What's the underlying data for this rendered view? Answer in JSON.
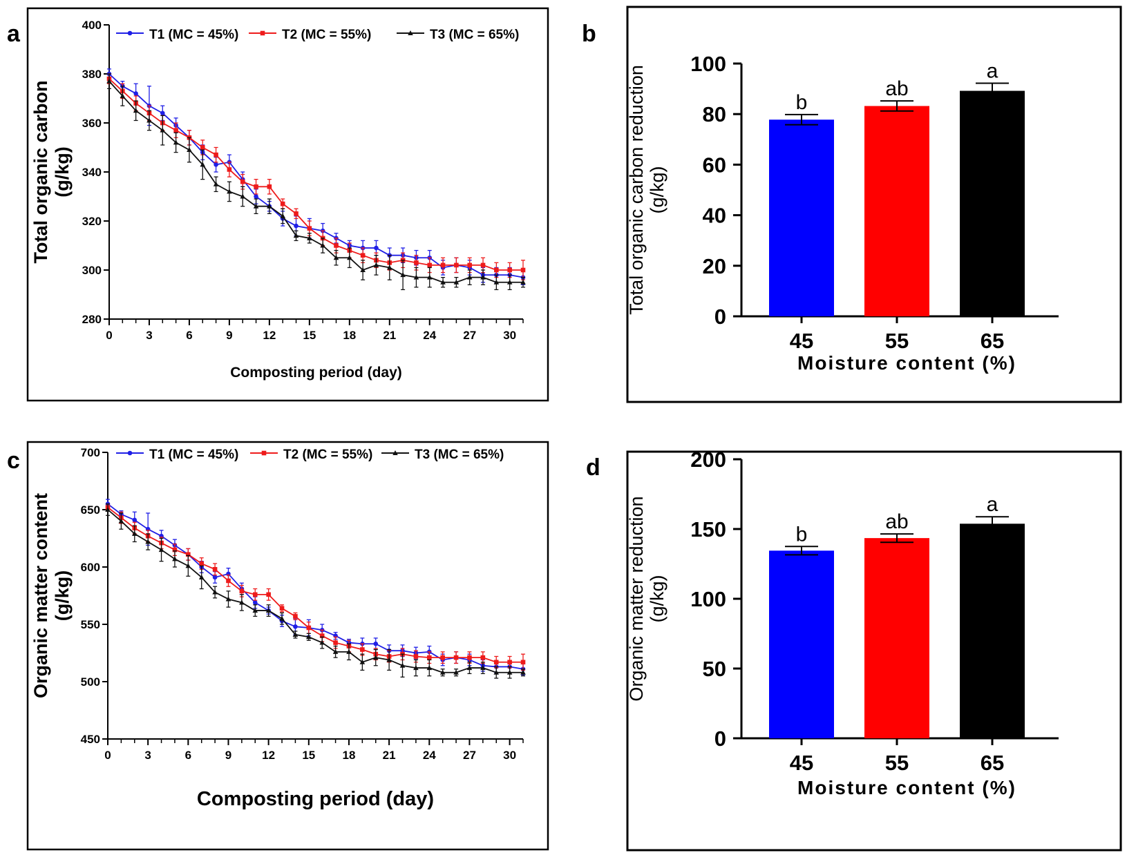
{
  "panel_labels": {
    "a": "a",
    "b": "b",
    "c": "c",
    "d": "d"
  },
  "colors": {
    "T1": "#1f1fe6",
    "T2": "#ee1b1b",
    "T3": "#111111",
    "blue_bar": "#0000ff",
    "red_bar": "#ff0000",
    "black_bar": "#000000"
  },
  "chart_data": [
    {
      "id": "a",
      "type": "line",
      "ylabel_line1": "Total organic carbon",
      "ylabel_line2": "(g/kg)",
      "xlabel": "Composting period (day)",
      "xlim": [
        0,
        31
      ],
      "ylim": [
        280,
        400
      ],
      "xticks": [
        0,
        3,
        6,
        9,
        12,
        15,
        18,
        21,
        24,
        27,
        30
      ],
      "yticks": [
        280,
        300,
        320,
        340,
        360,
        380,
        400
      ],
      "legend": "top",
      "series": [
        {
          "name": "T1 (MC = 45%)",
          "marker": "circle",
          "x": [
            0,
            1,
            2,
            3,
            4,
            5,
            6,
            7,
            8,
            9,
            10,
            11,
            12,
            13,
            14,
            15,
            16,
            17,
            18,
            19,
            20,
            21,
            22,
            23,
            24,
            25,
            26,
            27,
            28,
            29,
            30,
            31
          ],
          "values": [
            380,
            375,
            372,
            367,
            364,
            359,
            354,
            348,
            343,
            344,
            337,
            330,
            326,
            321,
            318,
            317,
            316,
            313,
            310,
            309,
            309,
            306,
            306,
            305,
            305,
            301,
            302,
            301,
            298,
            298,
            298,
            297
          ],
          "errors": [
            2,
            2,
            4,
            8,
            3,
            3,
            3,
            3,
            3,
            3,
            3,
            3,
            2,
            3,
            4,
            4,
            3,
            2,
            2,
            3,
            3,
            3,
            3,
            3,
            3,
            3,
            3,
            3,
            3,
            3,
            3,
            3
          ]
        },
        {
          "name": "T2 (MC = 55%)",
          "marker": "square",
          "x": [
            0,
            1,
            2,
            3,
            4,
            5,
            6,
            7,
            8,
            9,
            10,
            11,
            12,
            13,
            14,
            15,
            16,
            17,
            18,
            19,
            20,
            21,
            22,
            23,
            24,
            25,
            26,
            27,
            28,
            29,
            30,
            31
          ],
          "values": [
            378,
            373,
            368,
            364,
            360,
            357,
            354,
            350,
            347,
            341,
            336,
            334,
            334,
            327,
            323,
            317,
            313,
            310,
            308,
            306,
            304,
            303,
            304,
            303,
            302,
            302,
            302,
            302,
            302,
            300,
            300,
            300
          ],
          "errors": [
            2,
            3,
            3,
            3,
            3,
            3,
            3,
            3,
            3,
            3,
            3,
            3,
            3,
            2,
            2,
            3,
            3,
            3,
            3,
            3,
            3,
            3,
            3,
            3,
            3,
            3,
            3,
            3,
            3,
            3,
            3,
            4
          ]
        },
        {
          "name": "T3 (MC = 65%)",
          "marker": "triangle",
          "x": [
            0,
            1,
            2,
            3,
            4,
            5,
            6,
            7,
            8,
            9,
            10,
            11,
            12,
            13,
            14,
            15,
            16,
            17,
            18,
            19,
            20,
            21,
            22,
            23,
            24,
            25,
            26,
            27,
            28,
            29,
            30,
            31
          ],
          "values": [
            377,
            371,
            365,
            361,
            357,
            352,
            349,
            343,
            335,
            332,
            330,
            326,
            326,
            322,
            314,
            313,
            310,
            305,
            305,
            300,
            302,
            301,
            298,
            297,
            297,
            295,
            295,
            297,
            297,
            295,
            295,
            295
          ],
          "errors": [
            3,
            4,
            4,
            4,
            6,
            4,
            5,
            6,
            3,
            4,
            4,
            3,
            3,
            3,
            2,
            2,
            3,
            3,
            4,
            4,
            4,
            5,
            6,
            4,
            4,
            2,
            2,
            3,
            3,
            3,
            3,
            2
          ]
        }
      ]
    },
    {
      "id": "b",
      "type": "bar",
      "ylabel_line1": "Total organic carbon reduction",
      "ylabel_line2": "(g/kg)",
      "xlabel": "Moisture content (%)",
      "categories": [
        "45",
        "55",
        "65"
      ],
      "values": [
        77.8,
        83.2,
        89.2
      ],
      "errors": [
        2.0,
        2.0,
        3.0
      ],
      "significance": [
        "b",
        "ab",
        "a"
      ],
      "ylim": [
        0,
        100
      ],
      "yticks": [
        0,
        20,
        40,
        60,
        80,
        100
      ]
    },
    {
      "id": "c",
      "type": "line",
      "ylabel_line1": "Organic matter content",
      "ylabel_line2": "(g/kg)",
      "xlabel": "Composting period (day)",
      "xlim": [
        0,
        31
      ],
      "ylim": [
        450,
        700
      ],
      "xticks": [
        0,
        3,
        6,
        9,
        12,
        15,
        18,
        21,
        24,
        27,
        30
      ],
      "yticks": [
        450,
        500,
        550,
        600,
        650,
        700
      ],
      "legend": "top",
      "series": [
        {
          "name": "T1 (MC = 45%)",
          "marker": "circle",
          "x": [
            0,
            1,
            2,
            3,
            4,
            5,
            6,
            7,
            8,
            9,
            10,
            11,
            12,
            13,
            14,
            15,
            16,
            17,
            18,
            19,
            20,
            21,
            22,
            23,
            24,
            25,
            26,
            27,
            28,
            29,
            30,
            31
          ],
          "values": [
            655,
            646,
            641,
            633,
            627,
            619,
            611,
            600,
            591,
            594,
            581,
            569,
            562,
            553,
            548,
            547,
            545,
            540,
            534,
            533,
            533,
            527,
            527,
            525,
            526,
            519,
            521,
            519,
            514,
            513,
            513,
            511
          ],
          "errors": [
            4,
            3,
            7,
            14,
            5,
            5,
            5,
            5,
            5,
            5,
            5,
            5,
            3,
            5,
            7,
            7,
            5,
            3,
            3,
            5,
            5,
            5,
            5,
            5,
            5,
            5,
            5,
            5,
            5,
            5,
            5,
            5
          ]
        },
        {
          "name": "T2 (MC = 55%)",
          "marker": "square",
          "x": [
            0,
            1,
            2,
            3,
            4,
            5,
            6,
            7,
            8,
            9,
            10,
            11,
            12,
            13,
            14,
            15,
            16,
            17,
            18,
            19,
            20,
            21,
            22,
            23,
            24,
            25,
            26,
            27,
            28,
            29,
            30,
            31
          ],
          "values": [
            652,
            643,
            634,
            627,
            621,
            615,
            611,
            603,
            598,
            588,
            579,
            576,
            576,
            564,
            557,
            547,
            540,
            534,
            531,
            528,
            524,
            522,
            524,
            522,
            521,
            521,
            521,
            521,
            521,
            517,
            517,
            517
          ],
          "errors": [
            3,
            5,
            5,
            5,
            5,
            5,
            5,
            5,
            5,
            5,
            5,
            5,
            5,
            3,
            3,
            5,
            5,
            5,
            5,
            5,
            5,
            5,
            5,
            5,
            5,
            5,
            5,
            5,
            5,
            5,
            5,
            7
          ]
        },
        {
          "name": "T3 (MC = 65%)",
          "marker": "triangle",
          "x": [
            0,
            1,
            2,
            3,
            4,
            5,
            6,
            7,
            8,
            9,
            10,
            11,
            12,
            13,
            14,
            15,
            16,
            17,
            18,
            19,
            20,
            21,
            22,
            23,
            24,
            25,
            26,
            27,
            28,
            29,
            30,
            31
          ],
          "values": [
            650,
            640,
            629,
            622,
            615,
            607,
            601,
            591,
            578,
            572,
            569,
            562,
            562,
            555,
            541,
            539,
            534,
            526,
            526,
            517,
            521,
            519,
            514,
            512,
            512,
            508,
            508,
            512,
            512,
            508,
            508,
            508
          ],
          "errors": [
            5,
            7,
            7,
            7,
            10,
            7,
            9,
            10,
            5,
            7,
            7,
            5,
            5,
            5,
            3,
            3,
            5,
            5,
            7,
            7,
            7,
            9,
            10,
            7,
            7,
            3,
            3,
            5,
            5,
            5,
            5,
            3
          ]
        }
      ]
    },
    {
      "id": "d",
      "type": "bar",
      "ylabel_line1": "Organic matter reduction",
      "ylabel_line2": "(g/kg)",
      "xlabel": "Moisture content (%)",
      "categories": [
        "45",
        "55",
        "65"
      ],
      "values": [
        134.5,
        143.5,
        153.8
      ],
      "errors": [
        3.0,
        3.0,
        5.0
      ],
      "significance": [
        "b",
        "ab",
        "a"
      ],
      "ylim": [
        0,
        200
      ],
      "yticks": [
        0,
        50,
        100,
        150,
        200
      ]
    }
  ]
}
